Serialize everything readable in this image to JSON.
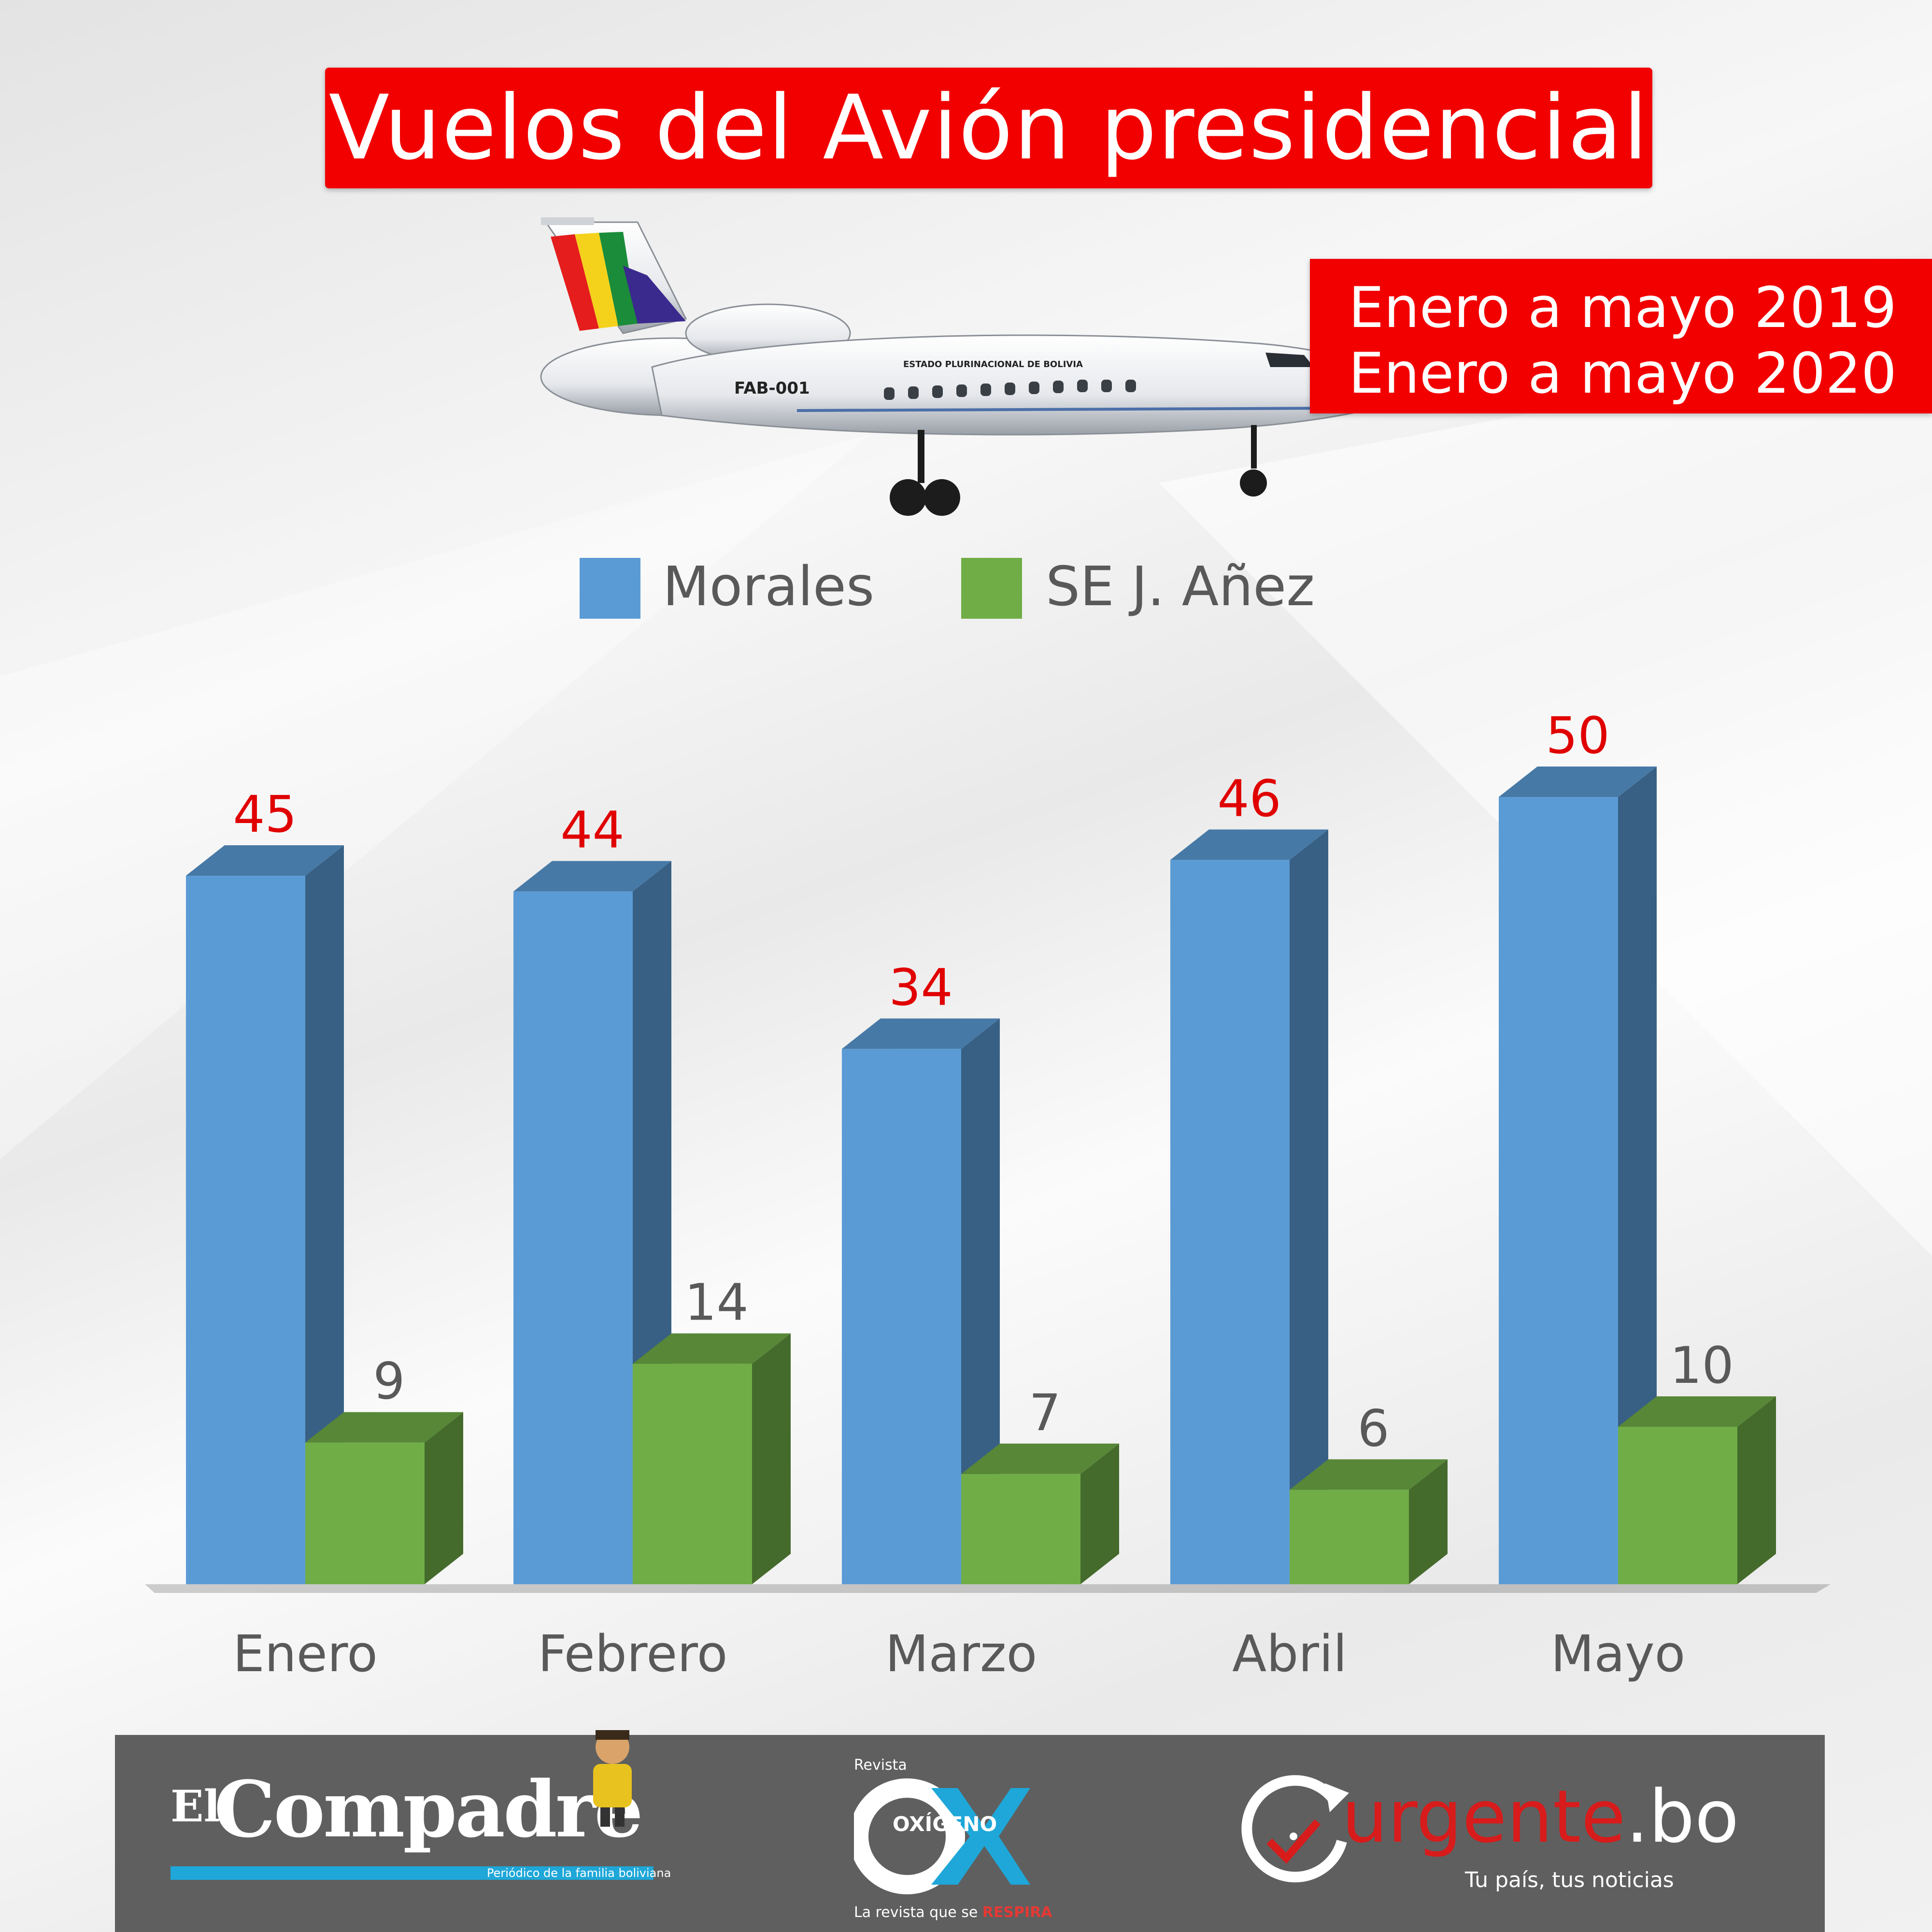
{
  "title": "Vuelos del Avión presidencial",
  "periods": [
    "Enero a mayo 2019",
    "Enero a mayo 2020"
  ],
  "plane": {
    "registration": "FAB-001",
    "fuselage_text": "ESTADO PLURINACIONAL DE BOLIVIA"
  },
  "chart_data": {
    "type": "bar",
    "categories": [
      "Enero",
      "Febrero",
      "Marzo",
      "Abril",
      "Mayo"
    ],
    "series": [
      {
        "name": "Morales",
        "values": [
          45,
          44,
          34,
          46,
          50
        ],
        "color": "#5b9bd5",
        "label_color": "#e00000"
      },
      {
        "name": "SE J. Añez",
        "values": [
          9,
          14,
          7,
          6,
          10
        ],
        "color": "#70ad47",
        "label_color": "#595959"
      }
    ],
    "legend": "top-center",
    "grid": false
  },
  "footer": {
    "elcompadre": {
      "prefix": "El",
      "name": "Compadre",
      "tagline": "Periódico de la familia boliviana"
    },
    "oxigeno": {
      "top": "Revista",
      "brand": "OXÍGENO",
      "tagline": "La revista que se ",
      "tagline_accent": "RESPIRA"
    },
    "urgente": {
      "name_a": "urgente",
      "name_b": ".bo",
      "tagline": "Tu país, tus noticias"
    }
  },
  "colors": {
    "accent_red": "#f20000",
    "morales_blue": "#5b9bd5",
    "anez_green": "#70ad47",
    "footer_gray": "#5f5f5f"
  }
}
